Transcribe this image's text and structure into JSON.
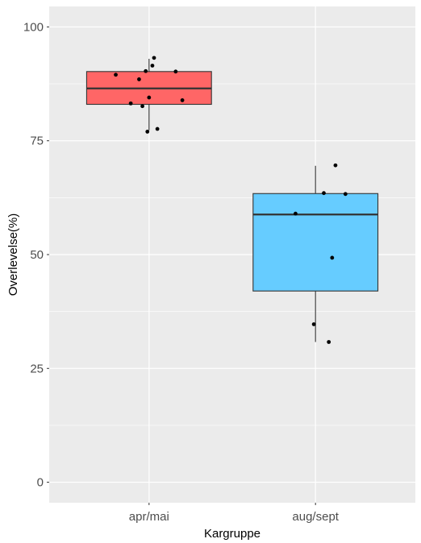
{
  "chart_data": {
    "type": "boxplot",
    "title": "",
    "xlabel": "Kargruppe",
    "ylabel": "Overlevelse(%)",
    "ylim": [
      -4.5,
      104.5
    ],
    "yticks": [
      0,
      25,
      50,
      75,
      100
    ],
    "ytick_labels": [
      "0",
      "25",
      "50",
      "75",
      "100"
    ],
    "grid": true,
    "legend": "none",
    "categories": [
      "apr/mai",
      "aug/sept"
    ],
    "colors": {
      "panel": "#ebebeb",
      "grid": "#ffffff",
      "outline": "#333333",
      "point": "#000000"
    },
    "boxes": [
      {
        "category": "apr/mai",
        "fill": "#ff6666",
        "whisker_low": 77.3,
        "q1": 83.0,
        "median": 86.5,
        "q3": 90.2,
        "whisker_high": 93.0,
        "points": [
          {
            "jitter": 0.03,
            "y": 93.2
          },
          {
            "jitter": 0.02,
            "y": 91.5
          },
          {
            "jitter": -0.02,
            "y": 90.3
          },
          {
            "jitter": 0.16,
            "y": 90.2
          },
          {
            "jitter": -0.2,
            "y": 89.5
          },
          {
            "jitter": -0.06,
            "y": 88.5
          },
          {
            "jitter": 0.0,
            "y": 84.5
          },
          {
            "jitter": 0.2,
            "y": 83.9
          },
          {
            "jitter": -0.11,
            "y": 83.2
          },
          {
            "jitter": -0.04,
            "y": 82.6
          },
          {
            "jitter": 0.05,
            "y": 77.6
          },
          {
            "jitter": -0.01,
            "y": 77.0
          }
        ]
      },
      {
        "category": "aug/sept",
        "fill": "#66ccff",
        "whisker_low": 30.8,
        "q1": 42.0,
        "median": 58.8,
        "q3": 63.4,
        "whisker_high": 69.5,
        "points": [
          {
            "jitter": 0.12,
            "y": 69.6
          },
          {
            "jitter": 0.05,
            "y": 63.5
          },
          {
            "jitter": 0.18,
            "y": 63.3
          },
          {
            "jitter": -0.12,
            "y": 59.0
          },
          {
            "jitter": 0.1,
            "y": 49.3
          },
          {
            "jitter": -0.01,
            "y": 34.7
          },
          {
            "jitter": 0.08,
            "y": 30.8
          }
        ]
      }
    ]
  }
}
